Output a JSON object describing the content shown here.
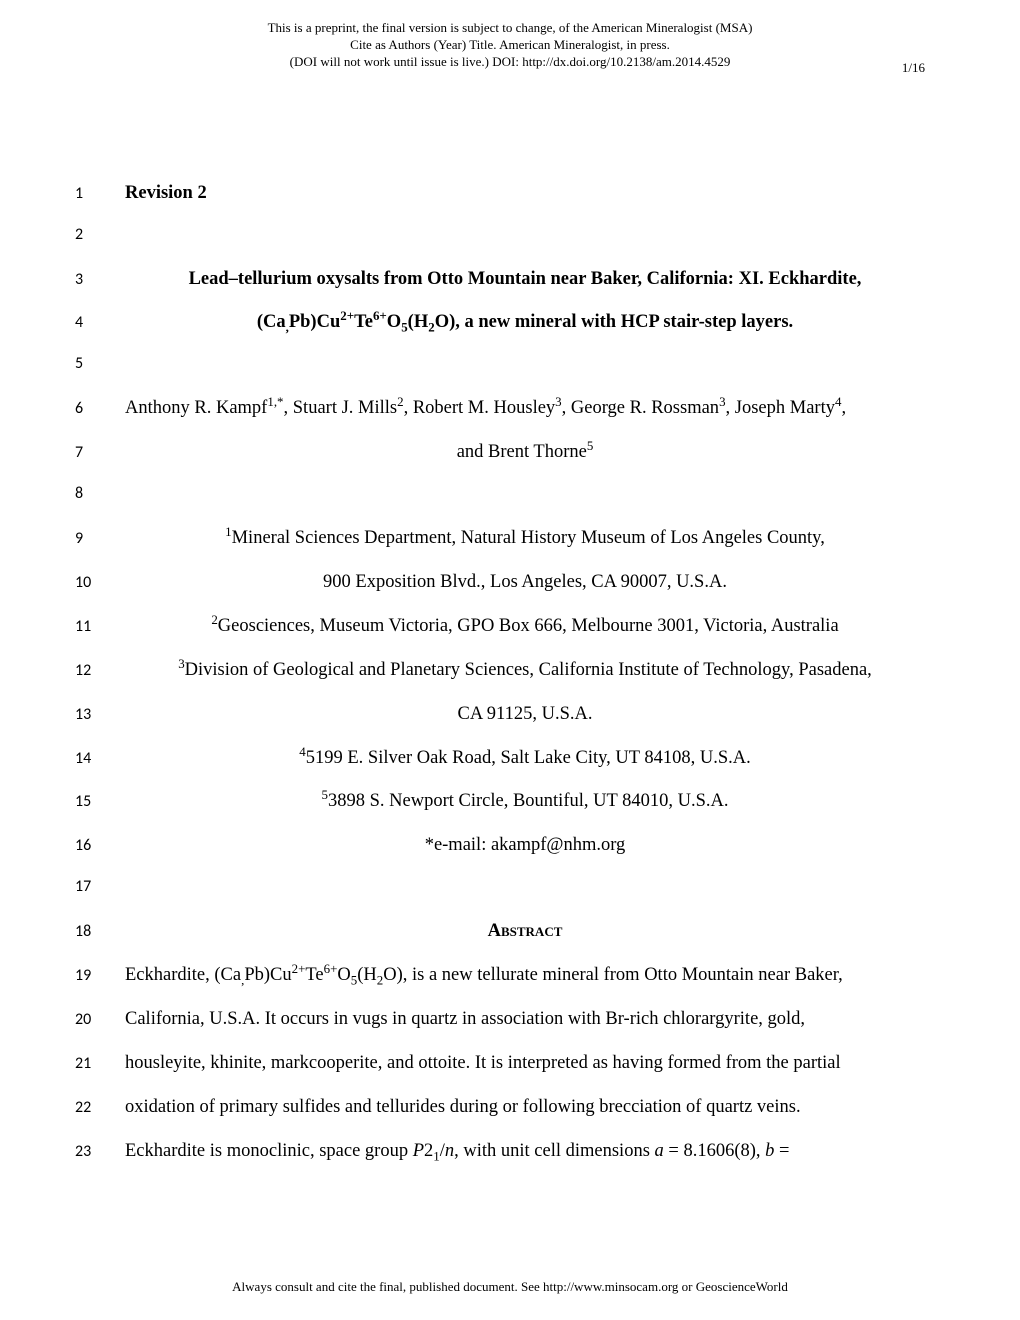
{
  "header": {
    "line1": "This is a preprint, the final version is subject to change, of the American Mineralogist (MSA)",
    "line2": "Cite as Authors (Year) Title. American Mineralogist, in press.",
    "line3": "(DOI will not work until issue is live.) DOI: http://dx.doi.org/10.2138/am.2014.4529",
    "pageNum": "1/16"
  },
  "lines": {
    "l1": "Revision 2",
    "l3": "Lead–tellurium oxysalts from Otto Mountain near Baker, California: XI. Eckhardite,",
    "l4_pre": "(Ca",
    "l4_sub1": ",",
    "l4_mid1": "Pb)Cu",
    "l4_sup1": "2+",
    "l4_mid2": "Te",
    "l4_sup2": "6+",
    "l4_mid3": "O",
    "l4_sub2": "5",
    "l4_mid4": "(H",
    "l4_sub3": "2",
    "l4_post": "O), a new mineral with HCP stair-step layers.",
    "l6_a": "Anthony R. Kampf",
    "l6_sup1": "1,*",
    "l6_b": ", Stuart J. Mills",
    "l6_sup2": "2",
    "l6_c": ", Robert M. Housley",
    "l6_sup3": "3",
    "l6_d": ", George R. Rossman",
    "l6_sup4": "3",
    "l6_e": ", Joseph Marty",
    "l6_sup5": "4",
    "l6_f": ",",
    "l7_a": "and Brent Thorne",
    "l7_sup": "5",
    "l9_sup": "1",
    "l9": "Mineral Sciences Department, Natural History Museum of Los Angeles County,",
    "l10": "900 Exposition Blvd., Los Angeles, CA 90007, U.S.A.",
    "l11_sup": "2",
    "l11": "Geosciences, Museum Victoria, GPO Box 666, Melbourne 3001, Victoria, Australia",
    "l12_sup": "3",
    "l12": "Division of Geological and Planetary Sciences, California Institute of Technology, Pasadena,",
    "l13": "CA 91125, U.S.A.",
    "l14_sup": "4",
    "l14": "5199 E. Silver Oak Road, Salt Lake City, UT 84108, U.S.A.",
    "l15_sup": "5",
    "l15": "3898 S. Newport Circle, Bountiful, UT 84010, U.S.A.",
    "l16": "*e-mail: akampf@nhm.org",
    "l18": "Abstract",
    "l19_a": "Eckhardite, (Ca",
    "l19_sub1": ",",
    "l19_b": "Pb)Cu",
    "l19_sup1": "2+",
    "l19_c": "Te",
    "l19_sup2": "6+",
    "l19_d": "O",
    "l19_sub2": "5",
    "l19_e": "(H",
    "l19_sub3": "2",
    "l19_f": "O), is a new tellurate mineral from Otto Mountain near Baker,",
    "l20": "California, U.S.A. It occurs in vugs in quartz in association with Br-rich chlorargyrite, gold,",
    "l21": "housleyite, khinite, markcooperite, and ottoite. It is interpreted as having formed from the partial",
    "l22": "oxidation of primary sulfides and tellurides during or following brecciation of quartz veins.",
    "l23_a": "Eckhardite is monoclinic, space group ",
    "l23_i1": "P",
    "l23_b": "2",
    "l23_sub": "1",
    "l23_c": "/",
    "l23_i2": "n",
    "l23_d": ", with unit cell dimensions ",
    "l23_i3": "a",
    "l23_e": " = 8.1606(8), ",
    "l23_i4": "b",
    "l23_f": " ="
  },
  "footer": "Always consult and cite the final, published document. See http://www.minsocam.org or GeoscienceWorld"
}
